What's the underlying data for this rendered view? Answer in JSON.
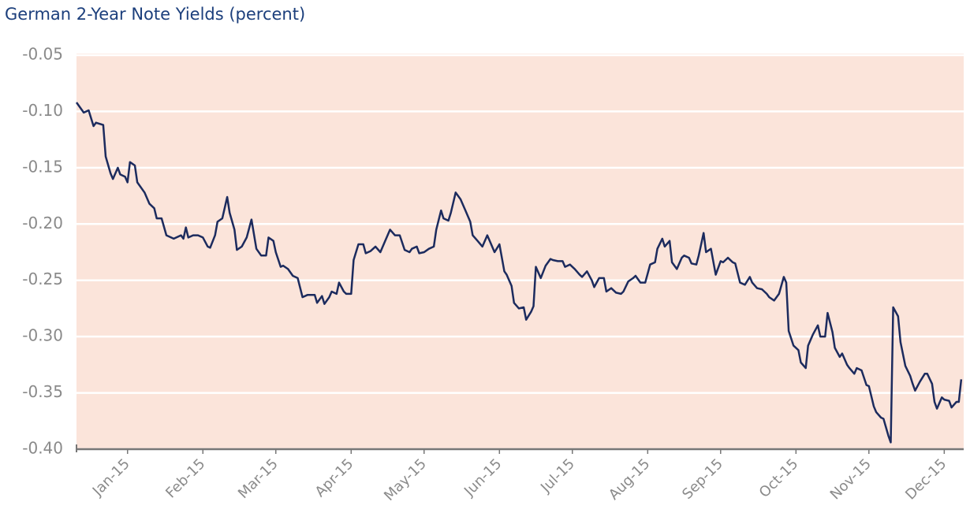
{
  "chart_data": {
    "type": "line",
    "title": "German 2-Year Note Yields (percent)",
    "color": "#1c2b5e",
    "grid": true,
    "xlim": [
      0,
      365
    ],
    "ylim": [
      -0.4,
      -0.05
    ],
    "yticks": [
      -0.05,
      {
        "value": -0.1,
        "label": "-0.10"
      },
      -0.15,
      {
        "value": -0.2,
        "label": "-0.20"
      },
      -0.25,
      {
        "value": -0.3,
        "label": "-0.30"
      },
      -0.35,
      {
        "value": -0.4,
        "label": "-0.40"
      }
    ],
    "xticks": [
      {
        "value": 21,
        "label": "Jan-15"
      },
      {
        "value": 52,
        "label": "Feb-15"
      },
      {
        "value": 82,
        "label": "Mar-15"
      },
      {
        "value": 113,
        "label": "Apr-15"
      },
      {
        "value": 143,
        "label": "May-15"
      },
      {
        "value": 174,
        "label": "Jun-15"
      },
      {
        "value": 204,
        "label": "Jul-15"
      },
      {
        "value": 235,
        "label": "Aug-15"
      },
      {
        "value": 265,
        "label": "Sep-15"
      },
      {
        "value": 296,
        "label": "Oct-15"
      },
      {
        "value": 326,
        "label": "Nov-15"
      },
      {
        "value": 357,
        "label": "Dec-15"
      }
    ],
    "x": [
      0,
      3,
      5,
      7,
      8,
      11,
      12,
      14,
      15,
      17,
      18,
      20,
      21,
      22,
      24,
      25,
      28,
      30,
      32,
      33,
      35,
      37,
      40,
      43,
      44,
      45,
      46,
      48,
      50,
      52,
      54,
      55,
      57,
      58,
      60,
      62,
      63,
      65,
      66,
      68,
      70,
      72,
      74,
      76,
      78,
      79,
      81,
      82,
      84,
      85,
      87,
      89,
      91,
      93,
      95,
      98,
      99,
      101,
      102,
      104,
      105,
      107,
      108,
      110,
      111,
      113,
      114,
      116,
      118,
      119,
      121,
      123,
      125,
      127,
      129,
      131,
      133,
      135,
      137,
      138,
      140,
      141,
      143,
      145,
      147,
      148,
      150,
      151,
      153,
      154,
      156,
      158,
      160,
      162,
      163,
      165,
      167,
      169,
      170,
      172,
      174,
      176,
      177,
      179,
      180,
      182,
      184,
      185,
      187,
      188,
      189,
      191,
      193,
      195,
      196,
      198,
      200,
      201,
      203,
      205,
      207,
      208,
      210,
      212,
      213,
      215,
      217,
      218,
      220,
      222,
      224,
      225,
      227,
      229,
      230,
      232,
      234,
      236,
      238,
      239,
      241,
      242,
      244,
      245,
      247,
      249,
      250,
      252,
      253,
      255,
      256,
      258,
      259,
      261,
      263,
      265,
      266,
      268,
      270,
      271,
      273,
      275,
      277,
      278,
      280,
      282,
      284,
      285,
      287,
      289,
      291,
      292,
      293,
      295,
      297,
      298,
      300,
      301,
      303,
      305,
      306,
      308,
      309,
      311,
      312,
      314,
      315,
      317,
      318,
      320,
      321,
      323,
      325,
      326,
      328,
      329,
      331,
      332,
      334,
      335,
      336,
      338,
      339,
      341,
      343,
      344,
      345,
      347,
      349,
      350,
      352,
      353,
      354,
      356,
      357,
      359,
      360,
      362,
      363,
      364
    ],
    "values": [
      -0.092,
      -0.101,
      -0.099,
      -0.113,
      -0.11,
      -0.112,
      -0.14,
      -0.155,
      -0.16,
      -0.15,
      -0.156,
      -0.158,
      -0.163,
      -0.145,
      -0.148,
      -0.163,
      -0.172,
      -0.182,
      -0.186,
      -0.195,
      -0.195,
      -0.21,
      -0.213,
      -0.21,
      -0.213,
      -0.203,
      -0.212,
      -0.21,
      -0.21,
      -0.212,
      -0.22,
      -0.221,
      -0.21,
      -0.198,
      -0.195,
      -0.176,
      -0.19,
      -0.205,
      -0.223,
      -0.22,
      -0.212,
      -0.196,
      -0.222,
      -0.228,
      -0.228,
      -0.212,
      -0.215,
      -0.225,
      -0.238,
      -0.237,
      -0.24,
      -0.246,
      -0.248,
      -0.265,
      -0.263,
      -0.263,
      -0.27,
      -0.264,
      -0.271,
      -0.265,
      -0.26,
      -0.262,
      -0.252,
      -0.26,
      -0.262,
      -0.262,
      -0.232,
      -0.218,
      -0.218,
      -0.226,
      -0.224,
      -0.22,
      -0.225,
      -0.215,
      -0.205,
      -0.21,
      -0.21,
      -0.223,
      -0.225,
      -0.222,
      -0.22,
      -0.226,
      -0.225,
      -0.222,
      -0.22,
      -0.205,
      -0.188,
      -0.195,
      -0.197,
      -0.19,
      -0.172,
      -0.178,
      -0.188,
      -0.198,
      -0.21,
      -0.215,
      -0.22,
      -0.21,
      -0.215,
      -0.225,
      -0.218,
      -0.242,
      -0.245,
      -0.255,
      -0.27,
      -0.275,
      -0.274,
      -0.285,
      -0.278,
      -0.273,
      -0.238,
      -0.248,
      -0.237,
      -0.231,
      -0.232,
      -0.233,
      -0.233,
      -0.238,
      -0.236,
      -0.24,
      -0.245,
      -0.247,
      -0.242,
      -0.25,
      -0.256,
      -0.248,
      -0.248,
      -0.26,
      -0.257,
      -0.261,
      -0.262,
      -0.26,
      -0.251,
      -0.248,
      -0.246,
      -0.252,
      -0.252,
      -0.236,
      -0.234,
      -0.222,
      -0.213,
      -0.22,
      -0.215,
      -0.234,
      -0.24,
      -0.23,
      -0.228,
      -0.23,
      -0.235,
      -0.236,
      -0.228,
      -0.208,
      -0.225,
      -0.222,
      -0.245,
      -0.233,
      -0.234,
      -0.23,
      -0.234,
      -0.235,
      -0.252,
      -0.254,
      -0.247,
      -0.252,
      -0.257,
      -0.258,
      -0.262,
      -0.265,
      -0.268,
      -0.262,
      -0.247,
      -0.252,
      -0.295,
      -0.308,
      -0.312,
      -0.323,
      -0.328,
      -0.308,
      -0.298,
      -0.29,
      -0.3,
      -0.3,
      -0.279,
      -0.296,
      -0.31,
      -0.318,
      -0.315,
      -0.325,
      -0.328,
      -0.333,
      -0.328,
      -0.33,
      -0.343,
      -0.344,
      -0.362,
      -0.367,
      -0.372,
      -0.373,
      -0.388,
      -0.394,
      -0.274,
      -0.282,
      -0.305,
      -0.326,
      -0.335,
      -0.342,
      -0.348,
      -0.34,
      -0.333,
      -0.333,
      -0.342,
      -0.358,
      -0.364,
      -0.354,
      -0.356,
      -0.357,
      -0.363,
      -0.358,
      -0.358,
      -0.338
    ]
  }
}
